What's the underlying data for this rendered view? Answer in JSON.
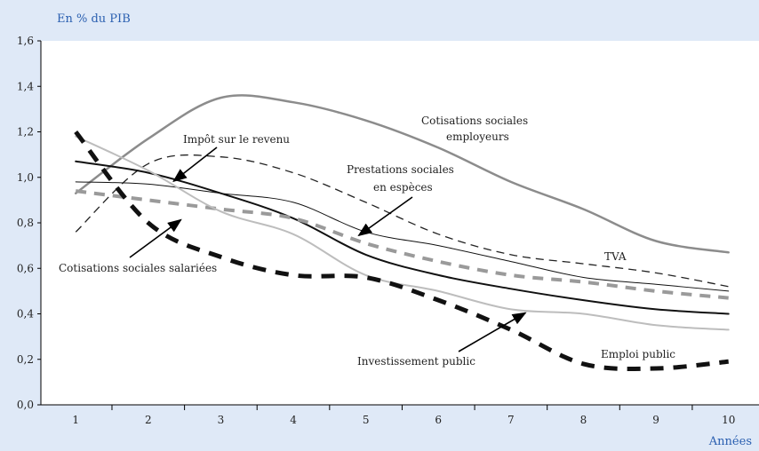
{
  "chart_data": {
    "type": "line",
    "y_unit_label": "En % du PIB",
    "x_unit_label": "Années",
    "categories": [
      "1",
      "2",
      "3",
      "4",
      "5",
      "6",
      "7",
      "8",
      "9",
      "10"
    ],
    "x": [
      1,
      2,
      3,
      4,
      5,
      6,
      7,
      8,
      9,
      10
    ],
    "ylim": [
      0,
      1.6
    ],
    "yticks": [
      0,
      0.2,
      0.4,
      0.6,
      0.8,
      1.0,
      1.2,
      1.4,
      1.6
    ],
    "ytick_labels": [
      "0,0",
      "0,2",
      "0,4",
      "0,6",
      "0,8",
      "1,0",
      "1,2",
      "1,4",
      "1,6"
    ],
    "grid": false,
    "series": [
      {
        "name": "Cotisations sociales employeurs",
        "style": "solid-thick-gray",
        "color": "#8c8c8c",
        "values": [
          0.93,
          1.17,
          1.35,
          1.33,
          1.25,
          1.13,
          0.98,
          0.86,
          0.72,
          0.67
        ]
      },
      {
        "name": "Prestations sociales en espèces",
        "style": "dashed-black",
        "color": "#222222",
        "values": [
          0.76,
          1.06,
          1.09,
          1.02,
          0.89,
          0.75,
          0.66,
          0.62,
          0.58,
          0.52
        ]
      },
      {
        "name": "TVA",
        "style": "solid-thin-black",
        "color": "#111111",
        "values": [
          0.98,
          0.97,
          0.93,
          0.89,
          0.76,
          0.7,
          0.63,
          0.56,
          0.53,
          0.5
        ]
      },
      {
        "name": "Impôt sur le revenu",
        "style": "solid-medium-black",
        "color": "#111111",
        "values": [
          1.07,
          1.02,
          0.93,
          0.82,
          0.66,
          0.57,
          0.51,
          0.46,
          0.42,
          0.4
        ]
      },
      {
        "name": "Cotisations sociales salariées",
        "style": "dashed-thick-gray",
        "color": "#9a9a9a",
        "values": [
          0.94,
          0.9,
          0.86,
          0.82,
          0.71,
          0.63,
          0.57,
          0.54,
          0.5,
          0.47
        ]
      },
      {
        "name": "Investissement public",
        "style": "solid-light-gray",
        "color": "#bdbdbd",
        "values": [
          1.18,
          1.03,
          0.85,
          0.75,
          0.57,
          0.5,
          0.42,
          0.4,
          0.35,
          0.33
        ]
      },
      {
        "name": "Emploi public",
        "style": "dashed-heavy-black",
        "color": "#111111",
        "values": [
          1.2,
          0.8,
          0.65,
          0.57,
          0.56,
          0.46,
          0.33,
          0.18,
          0.16,
          0.19
        ]
      }
    ],
    "annotations": [
      {
        "text": "Cotisations sociales",
        "series": 0
      },
      {
        "text": "employeurs",
        "series": 0
      },
      {
        "text": "Prestations sociales",
        "series": 1
      },
      {
        "text": "en espèces",
        "series": 1
      },
      {
        "text": "TVA",
        "series": 2
      },
      {
        "text": "Impôt sur le revenu",
        "series": 3
      },
      {
        "text": "Cotisations sociales salariées",
        "series": 4
      },
      {
        "text": "Investissement public",
        "series": 5
      },
      {
        "text": "Emploi public",
        "series": 6
      }
    ]
  }
}
